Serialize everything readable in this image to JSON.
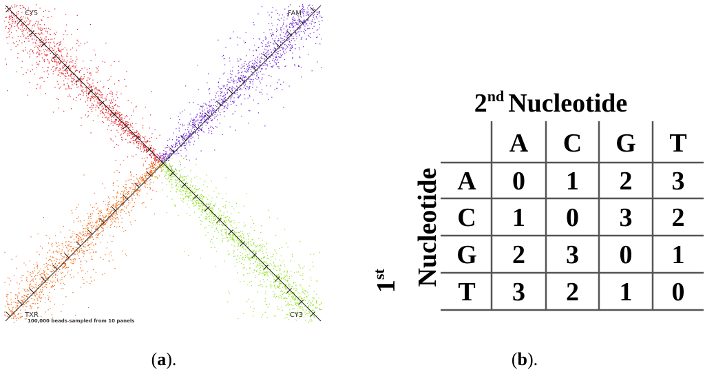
{
  "panel_a": {
    "channels": {
      "top_left": "CY5",
      "top_right": "FAM",
      "bottom_left": "TXR",
      "bottom_right": "CY3"
    },
    "footnote": "100,000 beads sampled from 10 panels",
    "caption": [
      "(",
      "a",
      ")."
    ]
  },
  "panel_b": {
    "column_title": {
      "ordinal": "2",
      "suffix": "nd",
      "text": "Nucleotide"
    },
    "row_title": {
      "ordinal": "1",
      "suffix": "st",
      "text": "Nucleotide"
    },
    "columns": [
      "A",
      "C",
      "G",
      "T"
    ],
    "rows": [
      {
        "label": "A",
        "cells": [
          0,
          1,
          2,
          3
        ]
      },
      {
        "label": "C",
        "cells": [
          1,
          0,
          3,
          2
        ]
      },
      {
        "label": "G",
        "cells": [
          2,
          3,
          0,
          1
        ]
      },
      {
        "label": "T",
        "cells": [
          3,
          2,
          1,
          0
        ]
      }
    ],
    "caption": [
      "(",
      "b",
      ")."
    ]
  }
}
